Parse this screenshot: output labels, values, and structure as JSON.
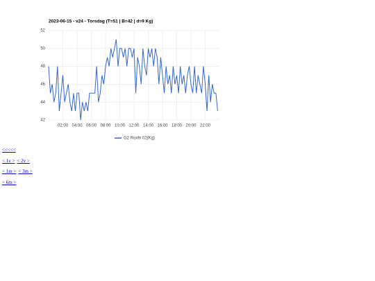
{
  "chart_data": {
    "type": "line",
    "title": "2023-06-15 - v24 - Torsdag (T=51 | B=42 | d=9 Kg)",
    "x": [
      0,
      0.25,
      0.5,
      0.75,
      1,
      1.25,
      1.5,
      1.75,
      2,
      2.25,
      2.5,
      2.75,
      3,
      3.25,
      3.5,
      3.75,
      4,
      4.25,
      4.5,
      4.75,
      5,
      5.25,
      5.5,
      5.75,
      6,
      6.25,
      6.5,
      6.75,
      7,
      7.25,
      7.5,
      7.75,
      8,
      8.25,
      8.5,
      8.75,
      9,
      9.25,
      9.5,
      9.75,
      10,
      10.25,
      10.5,
      10.75,
      11,
      11.25,
      11.5,
      11.75,
      12,
      12.25,
      12.5,
      12.75,
      13,
      13.25,
      13.5,
      13.75,
      14,
      14.25,
      14.5,
      14.75,
      15,
      15.25,
      15.5,
      15.75,
      16,
      16.25,
      16.5,
      16.75,
      17,
      17.25,
      17.5,
      17.75,
      18,
      18.25,
      18.5,
      18.75,
      19,
      19.25,
      19.5,
      19.75,
      20,
      20.25,
      20.5,
      20.75,
      21,
      21.25,
      21.5,
      21.75,
      22,
      22.25,
      22.5,
      22.75,
      23,
      23.25,
      23.5,
      23.75
    ],
    "series": [
      {
        "name": "G2 Roxfn 02(Kg)",
        "color": "#3366cc",
        "values": [
          48,
          45,
          46,
          44,
          45,
          48,
          43,
          45,
          47,
          44,
          45,
          46,
          44,
          43,
          45,
          43,
          45,
          45,
          42,
          44,
          43,
          44,
          43,
          45,
          45,
          45,
          45,
          48,
          44,
          45,
          47,
          46,
          48,
          49,
          48,
          50,
          49,
          50,
          51,
          48,
          50,
          50,
          49,
          50,
          48,
          50,
          50,
          49,
          50,
          45,
          49,
          48,
          46,
          50,
          48,
          47,
          50,
          49,
          50,
          48,
          50,
          49,
          46,
          49,
          47,
          45,
          48,
          46,
          47,
          45,
          48,
          46,
          47,
          45,
          48,
          46,
          47,
          45,
          47,
          48,
          46,
          45,
          48,
          45,
          47,
          46,
          45,
          48,
          46,
          43,
          47,
          44,
          46,
          45,
          45,
          43
        ]
      }
    ],
    "xlim": [
      0,
      24
    ],
    "xticks": [
      {
        "value": 2,
        "label": "02:00"
      },
      {
        "value": 4,
        "label": "04:00"
      },
      {
        "value": 6,
        "label": "06:00"
      },
      {
        "value": 8,
        "label": "08:00"
      },
      {
        "value": 10,
        "label": "10:00"
      },
      {
        "value": 12,
        "label": "12:00"
      },
      {
        "value": 14,
        "label": "14:00"
      },
      {
        "value": 16,
        "label": "16:00"
      },
      {
        "value": 18,
        "label": "18:00"
      },
      {
        "value": 20,
        "label": "20:00"
      },
      {
        "value": 22,
        "label": "22:00"
      }
    ],
    "ylim": [
      42,
      52
    ],
    "yticks": [
      42,
      44,
      46,
      48,
      50,
      52
    ],
    "grid": true,
    "legend": "bottom"
  },
  "links": [
    [
      "<<<<<"
    ],
    [
      "< 1v >",
      "< 2v >"
    ],
    [
      "< 1m >",
      "< 3m >"
    ],
    [
      "< 6m >"
    ]
  ]
}
